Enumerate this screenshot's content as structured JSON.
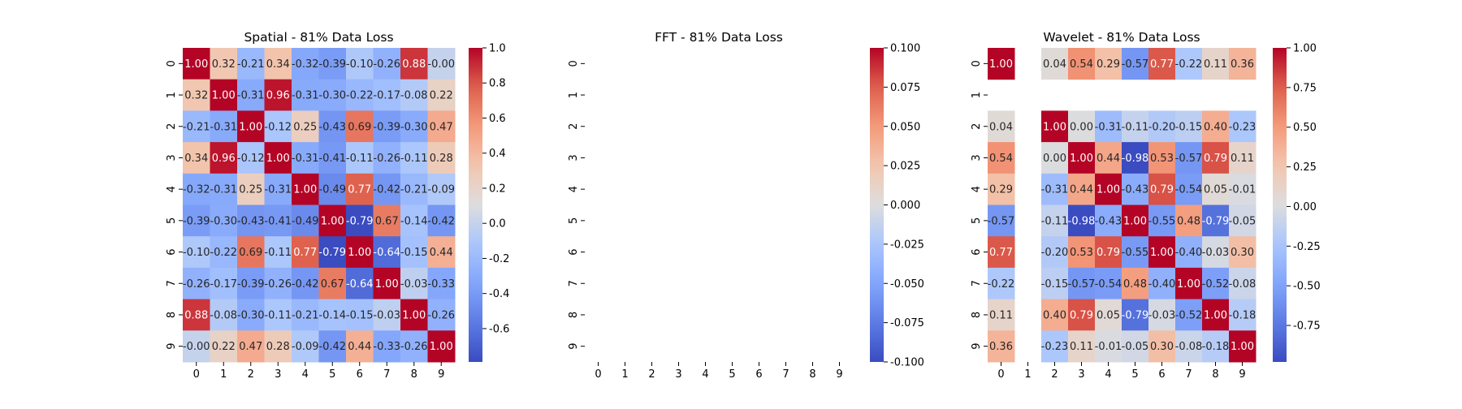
{
  "chart_data": [
    {
      "type": "heatmap",
      "title": "Spatial - 81% Data Loss",
      "x_ticks": [
        "0",
        "1",
        "2",
        "3",
        "4",
        "5",
        "6",
        "7",
        "8",
        "9"
      ],
      "y_ticks": [
        "0",
        "1",
        "2",
        "3",
        "4",
        "5",
        "6",
        "7",
        "8",
        "9"
      ],
      "colormap": "coolwarm",
      "vmin": -0.79,
      "vmax": 1.0,
      "colorbar_ticks": [
        "-0.6",
        "-0.4",
        "-0.2",
        "0.0",
        "0.2",
        "0.4",
        "0.6",
        "0.8",
        "1.0"
      ],
      "colorbar_tick_values": [
        -0.6,
        -0.4,
        -0.2,
        0.0,
        0.2,
        0.4,
        0.6,
        0.8,
        1.0
      ],
      "values": [
        [
          1.0,
          0.32,
          -0.21,
          0.34,
          -0.32,
          -0.39,
          -0.1,
          -0.26,
          0.88,
          -0.0
        ],
        [
          0.32,
          1.0,
          -0.31,
          0.96,
          -0.31,
          -0.3,
          -0.22,
          -0.17,
          -0.08,
          0.22
        ],
        [
          -0.21,
          -0.31,
          1.0,
          -0.12,
          0.25,
          -0.43,
          0.69,
          -0.39,
          -0.3,
          0.47
        ],
        [
          0.34,
          0.96,
          -0.12,
          1.0,
          -0.31,
          -0.41,
          -0.11,
          -0.26,
          -0.11,
          0.28
        ],
        [
          -0.32,
          -0.31,
          0.25,
          -0.31,
          1.0,
          -0.49,
          0.77,
          -0.42,
          -0.21,
          -0.09
        ],
        [
          -0.39,
          -0.3,
          -0.43,
          -0.41,
          -0.49,
          1.0,
          -0.79,
          0.67,
          -0.14,
          -0.42
        ],
        [
          -0.1,
          -0.22,
          0.69,
          -0.11,
          0.77,
          -0.79,
          1.0,
          -0.64,
          -0.15,
          0.44
        ],
        [
          -0.26,
          -0.17,
          -0.39,
          -0.26,
          -0.42,
          0.67,
          -0.64,
          1.0,
          -0.03,
          -0.33
        ],
        [
          0.88,
          -0.08,
          -0.3,
          -0.11,
          -0.21,
          -0.14,
          -0.15,
          -0.03,
          1.0,
          -0.26
        ],
        [
          -0.0,
          0.22,
          0.47,
          0.28,
          -0.09,
          -0.42,
          0.44,
          -0.33,
          -0.26,
          1.0
        ]
      ],
      "labels": [
        [
          "1.00",
          "0.32",
          "-0.21",
          "0.34",
          "-0.32",
          "-0.39",
          "-0.10",
          "-0.26",
          "0.88",
          "-0.00"
        ],
        [
          "0.32",
          "1.00",
          "-0.31",
          "0.96",
          "-0.31",
          "-0.30",
          "-0.22",
          "-0.17",
          "-0.08",
          "0.22"
        ],
        [
          "-0.21",
          "-0.31",
          "1.00",
          "-0.12",
          "0.25",
          "-0.43",
          "0.69",
          "-0.39",
          "-0.30",
          "0.47"
        ],
        [
          "0.34",
          "0.96",
          "-0.12",
          "1.00",
          "-0.31",
          "-0.41",
          "-0.11",
          "-0.26",
          "-0.11",
          "0.28"
        ],
        [
          "-0.32",
          "-0.31",
          "0.25",
          "-0.31",
          "1.00",
          "-0.49",
          "0.77",
          "-0.42",
          "-0.21",
          "-0.09"
        ],
        [
          "-0.39",
          "-0.30",
          "-0.43",
          "-0.41",
          "-0.49",
          "1.00",
          "-0.79",
          "0.67",
          "-0.14",
          "-0.42"
        ],
        [
          "-0.10",
          "-0.22",
          "0.69",
          "-0.11",
          "0.77",
          "-0.79",
          "1.00",
          "-0.64",
          "-0.15",
          "0.44"
        ],
        [
          "-0.26",
          "-0.17",
          "-0.39",
          "-0.26",
          "-0.42",
          "0.67",
          "-0.64",
          "1.00",
          "-0.03",
          "-0.33"
        ],
        [
          "0.88",
          "-0.08",
          "-0.30",
          "-0.11",
          "-0.21",
          "-0.14",
          "-0.15",
          "-0.03",
          "1.00",
          "-0.26"
        ],
        [
          "-0.00",
          "0.22",
          "0.47",
          "0.28",
          "-0.09",
          "-0.42",
          "0.44",
          "-0.33",
          "-0.26",
          "1.00"
        ]
      ]
    },
    {
      "type": "heatmap",
      "title": "FFT - 81% Data Loss",
      "x_ticks": [
        "0",
        "1",
        "2",
        "3",
        "4",
        "5",
        "6",
        "7",
        "8",
        "9"
      ],
      "y_ticks": [
        "0",
        "1",
        "2",
        "3",
        "4",
        "5",
        "6",
        "7",
        "8",
        "9"
      ],
      "colormap": "coolwarm",
      "vmin": -0.1,
      "vmax": 0.1,
      "colorbar_ticks": [
        "-0.100",
        "-0.075",
        "-0.050",
        "-0.025",
        "0.000",
        "0.025",
        "0.050",
        "0.075",
        "0.100"
      ],
      "colorbar_tick_values": [
        -0.1,
        -0.075,
        -0.05,
        -0.025,
        0.0,
        0.025,
        0.05,
        0.075,
        0.1
      ],
      "values": [
        [
          null,
          null,
          null,
          null,
          null,
          null,
          null,
          null,
          null,
          null
        ],
        [
          null,
          null,
          null,
          null,
          null,
          null,
          null,
          null,
          null,
          null
        ],
        [
          null,
          null,
          null,
          null,
          null,
          null,
          null,
          null,
          null,
          null
        ],
        [
          null,
          null,
          null,
          null,
          null,
          null,
          null,
          null,
          null,
          null
        ],
        [
          null,
          null,
          null,
          null,
          null,
          null,
          null,
          null,
          null,
          null
        ],
        [
          null,
          null,
          null,
          null,
          null,
          null,
          null,
          null,
          null,
          null
        ],
        [
          null,
          null,
          null,
          null,
          null,
          null,
          null,
          null,
          null,
          null
        ],
        [
          null,
          null,
          null,
          null,
          null,
          null,
          null,
          null,
          null,
          null
        ],
        [
          null,
          null,
          null,
          null,
          null,
          null,
          null,
          null,
          null,
          null
        ],
        [
          null,
          null,
          null,
          null,
          null,
          null,
          null,
          null,
          null,
          null
        ]
      ],
      "labels": []
    },
    {
      "type": "heatmap",
      "title": "Wavelet - 81% Data Loss",
      "x_ticks": [
        "0",
        "1",
        "2",
        "3",
        "4",
        "5",
        "6",
        "7",
        "8",
        "9"
      ],
      "y_ticks": [
        "0",
        "1",
        "2",
        "3",
        "4",
        "5",
        "6",
        "7",
        "8",
        "9"
      ],
      "colormap": "coolwarm",
      "vmin": -0.98,
      "vmax": 1.0,
      "colorbar_ticks": [
        "-0.75",
        "-0.50",
        "-0.25",
        "0.00",
        "0.25",
        "0.50",
        "0.75",
        "1.00"
      ],
      "colorbar_tick_values": [
        -0.75,
        -0.5,
        -0.25,
        0.0,
        0.25,
        0.5,
        0.75,
        1.0
      ],
      "values": [
        [
          1.0,
          null,
          0.04,
          0.54,
          0.29,
          -0.57,
          0.77,
          -0.22,
          0.11,
          0.36
        ],
        [
          null,
          null,
          null,
          null,
          null,
          null,
          null,
          null,
          null,
          null
        ],
        [
          0.04,
          null,
          1.0,
          0.0,
          -0.31,
          -0.11,
          -0.2,
          -0.15,
          0.4,
          -0.23
        ],
        [
          0.54,
          null,
          0.0,
          1.0,
          0.44,
          -0.98,
          0.53,
          -0.57,
          0.79,
          0.11
        ],
        [
          0.29,
          null,
          -0.31,
          0.44,
          1.0,
          -0.43,
          0.79,
          -0.54,
          0.05,
          -0.01
        ],
        [
          -0.57,
          null,
          -0.11,
          -0.98,
          -0.43,
          1.0,
          -0.55,
          0.48,
          -0.79,
          -0.05
        ],
        [
          0.77,
          null,
          -0.2,
          0.53,
          0.79,
          -0.55,
          1.0,
          -0.4,
          -0.03,
          0.3
        ],
        [
          -0.22,
          null,
          -0.15,
          -0.57,
          -0.54,
          0.48,
          -0.4,
          1.0,
          -0.52,
          -0.08
        ],
        [
          0.11,
          null,
          0.4,
          0.79,
          0.05,
          -0.79,
          -0.03,
          -0.52,
          1.0,
          -0.18
        ],
        [
          0.36,
          null,
          -0.23,
          0.11,
          -0.01,
          -0.05,
          0.3,
          -0.08,
          -0.18,
          1.0
        ]
      ],
      "labels": [
        [
          "1.00",
          "",
          "0.04",
          "0.54",
          "0.29",
          "-0.57",
          "0.77",
          "-0.22",
          "0.11",
          "0.36"
        ],
        [
          "",
          "",
          "",
          "",
          "",
          "",
          "",
          "",
          "",
          ""
        ],
        [
          "0.04",
          "",
          "1.00",
          "0.00",
          "-0.31",
          "-0.11",
          "-0.20",
          "-0.15",
          "0.40",
          "-0.23"
        ],
        [
          "0.54",
          "",
          "0.00",
          "1.00",
          "0.44",
          "-0.98",
          "0.53",
          "-0.57",
          "0.79",
          "0.11"
        ],
        [
          "0.29",
          "",
          "-0.31",
          "0.44",
          "1.00",
          "-0.43",
          "0.79",
          "-0.54",
          "0.05",
          "-0.01"
        ],
        [
          "-0.57",
          "",
          "-0.11",
          "-0.98",
          "-0.43",
          "1.00",
          "-0.55",
          "0.48",
          "-0.79",
          "-0.05"
        ],
        [
          "0.77",
          "",
          "-0.20",
          "0.53",
          "0.79",
          "-0.55",
          "1.00",
          "-0.40",
          "-0.03",
          "0.30"
        ],
        [
          "-0.22",
          "",
          "-0.15",
          "-0.57",
          "-0.54",
          "0.48",
          "-0.40",
          "1.00",
          "-0.52",
          "-0.08"
        ],
        [
          "0.11",
          "",
          "0.40",
          "0.79",
          "0.05",
          "-0.79",
          "-0.03",
          "-0.52",
          "1.00",
          "-0.18"
        ],
        [
          "0.36",
          "",
          "-0.23",
          "0.11",
          "-0.01",
          "-0.05",
          "0.30",
          "-0.08",
          "-0.18",
          "1.00"
        ]
      ]
    }
  ]
}
